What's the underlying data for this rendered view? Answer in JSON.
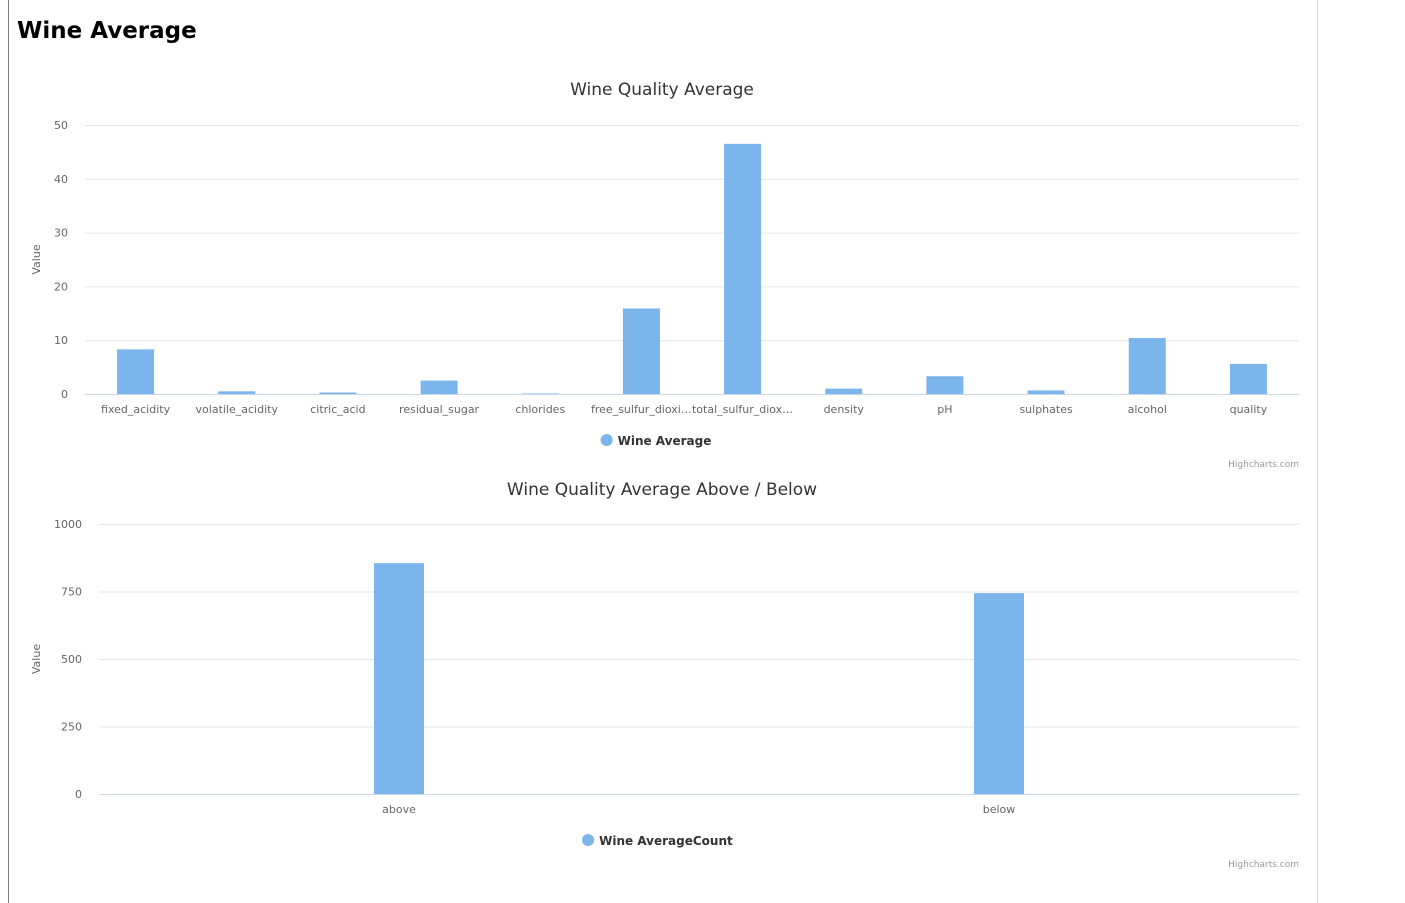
{
  "page": {
    "title": "Wine Average"
  },
  "colors": {
    "bar": "#7cb5ec",
    "grid": "#e6e6e6",
    "axis": "#ccd6eb"
  },
  "chart_data": [
    {
      "type": "bar",
      "title": "Wine Quality Average",
      "ylabel": "Value",
      "xlabel": "",
      "ylim": [
        0,
        50
      ],
      "yticks": [
        0,
        10,
        20,
        30,
        40,
        50
      ],
      "categories": [
        "fixed_acidity",
        "volatile_acidity",
        "citric_acid",
        "residual_sugar",
        "chlorides",
        "free_sulfur_dioxi…",
        "total_sulfur_diox…",
        "density",
        "pH",
        "sulphates",
        "alcohol",
        "quality"
      ],
      "series": [
        {
          "name": "Wine Average",
          "values": [
            8.3,
            0.5,
            0.27,
            2.5,
            0.09,
            15.9,
            46.5,
            1.0,
            3.3,
            0.66,
            10.4,
            5.6
          ]
        }
      ],
      "legend": "bottom-center",
      "grid": true,
      "credits": "Highcharts.com"
    },
    {
      "type": "bar",
      "title": "Wine Quality Average Above / Below",
      "ylabel": "Value",
      "xlabel": "",
      "ylim": [
        0,
        1000
      ],
      "yticks": [
        0,
        250,
        500,
        750,
        1000
      ],
      "categories": [
        "above",
        "below"
      ],
      "series": [
        {
          "name": "Wine AverageCount",
          "values": [
            855,
            744
          ]
        }
      ],
      "legend": "bottom-center",
      "grid": true,
      "credits": "Highcharts.com"
    }
  ]
}
